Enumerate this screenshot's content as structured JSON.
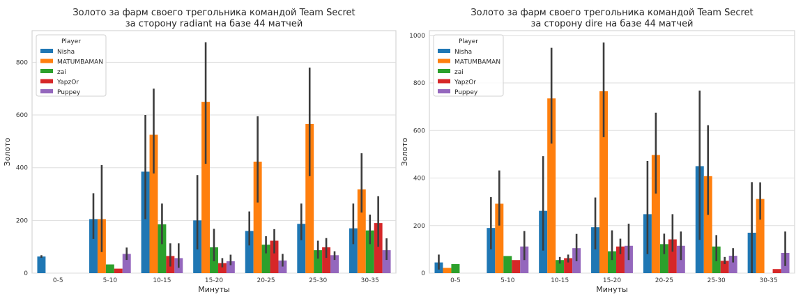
{
  "chart_data": [
    {
      "type": "bar",
      "title": "Золото за фарм своего трегольника командой Team Secret",
      "subtitle": "за сторону radiant на базе 44 матчей",
      "xlabel": "Минуты",
      "ylabel": "Золото",
      "ylim": [
        0,
        920
      ],
      "yticks": [
        0,
        200,
        400,
        600,
        800
      ],
      "grid": true,
      "legend_title": "Player",
      "legend_position": "top-left",
      "categories": [
        "0-5",
        "5-10",
        "10-15",
        "15-20",
        "20-25",
        "25-30",
        "30-35"
      ],
      "series": [
        {
          "name": "Nisha",
          "color": "#1f77b4",
          "values": [
            63,
            205,
            385,
            200,
            160,
            187,
            170
          ],
          "err_low": [
            58,
            130,
            205,
            90,
            105,
            125,
            110
          ],
          "err_high": [
            68,
            303,
            600,
            372,
            234,
            264,
            264
          ]
        },
        {
          "name": "MATUMBAMAN",
          "color": "#ff7f0e",
          "values": [
            0,
            205,
            525,
            650,
            423,
            566,
            318
          ],
          "err_low": [
            0,
            80,
            378,
            415,
            268,
            368,
            230
          ],
          "err_high": [
            0,
            410,
            700,
            876,
            595,
            780,
            455
          ]
        },
        {
          "name": "zai",
          "color": "#2ca02c",
          "values": [
            0,
            33,
            185,
            98,
            108,
            87,
            162
          ],
          "err_low": [
            0,
            33,
            110,
            45,
            75,
            55,
            110
          ],
          "err_high": [
            0,
            33,
            264,
            168,
            140,
            123,
            222
          ]
        },
        {
          "name": "YapzOr",
          "color": "#d62728",
          "values": [
            0,
            17,
            65,
            38,
            123,
            98,
            190
          ],
          "err_low": [
            0,
            17,
            25,
            22,
            75,
            58,
            100
          ],
          "err_high": [
            0,
            17,
            113,
            57,
            167,
            133,
            292
          ]
        },
        {
          "name": "Puppey",
          "color": "#9467bd",
          "values": [
            0,
            73,
            57,
            45,
            48,
            68,
            87
          ],
          "err_low": [
            0,
            50,
            20,
            30,
            25,
            50,
            50
          ],
          "err_high": [
            0,
            97,
            113,
            70,
            73,
            83,
            132
          ]
        }
      ]
    },
    {
      "type": "bar",
      "title": "Золото за фарм своего трегольника командой Team Secret",
      "subtitle": "за сторону dire на базе 44 матчей",
      "xlabel": "Минуты",
      "ylabel": "Золото",
      "ylim": [
        0,
        1020
      ],
      "yticks": [
        0,
        200,
        400,
        600,
        800,
        1000
      ],
      "grid": true,
      "legend_title": "Player",
      "legend_position": "top-left",
      "categories": [
        "0-5",
        "5-10",
        "10-15",
        "15-20",
        "20-25",
        "25-30",
        "30-35"
      ],
      "series": [
        {
          "name": "Nisha",
          "color": "#1f77b4",
          "values": [
            45,
            190,
            262,
            193,
            248,
            450,
            170
          ],
          "err_low": [
            15,
            100,
            95,
            100,
            80,
            140,
            0
          ],
          "err_high": [
            78,
            320,
            492,
            318,
            472,
            768,
            383
          ]
        },
        {
          "name": "MATUMBAMAN",
          "color": "#ff7f0e",
          "values": [
            22,
            292,
            735,
            765,
            497,
            408,
            312
          ],
          "err_low": [
            22,
            200,
            545,
            572,
            335,
            245,
            225
          ],
          "err_high": [
            22,
            432,
            948,
            970,
            675,
            622,
            382
          ]
        },
        {
          "name": "zai",
          "color": "#2ca02c",
          "values": [
            38,
            72,
            55,
            92,
            122,
            112,
            0
          ],
          "err_low": [
            38,
            72,
            40,
            55,
            80,
            50,
            0
          ],
          "err_high": [
            38,
            72,
            68,
            180,
            166,
            160,
            0
          ]
        },
        {
          "name": "YapzOr",
          "color": "#d62728",
          "values": [
            0,
            55,
            63,
            112,
            142,
            52,
            17
          ],
          "err_low": [
            0,
            55,
            45,
            80,
            90,
            38,
            17
          ],
          "err_high": [
            0,
            55,
            78,
            145,
            248,
            68,
            17
          ]
        },
        {
          "name": "Puppey",
          "color": "#9467bd",
          "values": [
            0,
            112,
            105,
            115,
            115,
            73,
            85
          ],
          "err_low": [
            0,
            55,
            50,
            55,
            55,
            45,
            30
          ],
          "err_high": [
            0,
            177,
            165,
            208,
            175,
            105,
            175
          ]
        }
      ]
    }
  ]
}
